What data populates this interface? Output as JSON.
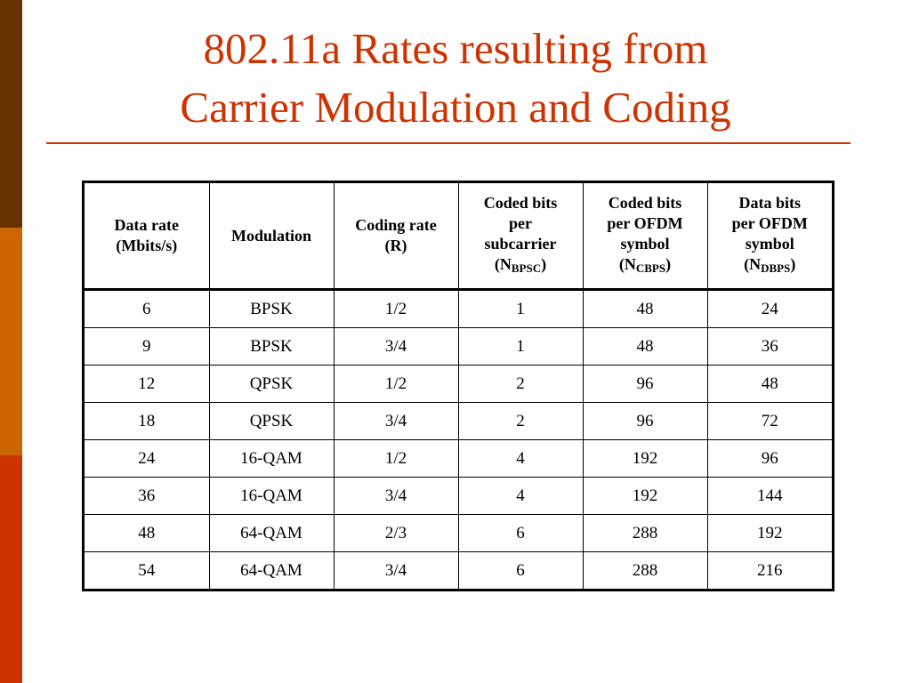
{
  "colors": {
    "band_top": "#663300",
    "band_middle": "#cc6600",
    "band_bottom": "#cc3300",
    "title": "#cc3300",
    "rule": "#cc3300"
  },
  "slide": {
    "title_line1": "802.11a Rates resulting from",
    "title_line2": "Carrier Modulation and Coding"
  },
  "table": {
    "headers": [
      {
        "lines": [
          "Data rate",
          "(Mbits/s)"
        ]
      },
      {
        "lines": [
          "Modulation"
        ]
      },
      {
        "lines": [
          "Coding rate",
          "(R)"
        ]
      },
      {
        "lines": [
          "Coded bits",
          "per",
          "subcarrier"
        ],
        "symbol": "N",
        "subscript": "BPSC"
      },
      {
        "lines": [
          "Coded bits",
          "per OFDM",
          "symbol"
        ],
        "symbol": "N",
        "subscript": "CBPS"
      },
      {
        "lines": [
          "Data bits",
          "per OFDM",
          "symbol"
        ],
        "symbol": "N",
        "subscript": "DBPS"
      }
    ],
    "rows": [
      [
        "6",
        "BPSK",
        "1/2",
        "1",
        "48",
        "24"
      ],
      [
        "9",
        "BPSK",
        "3/4",
        "1",
        "48",
        "36"
      ],
      [
        "12",
        "QPSK",
        "1/2",
        "2",
        "96",
        "48"
      ],
      [
        "18",
        "QPSK",
        "3/4",
        "2",
        "96",
        "72"
      ],
      [
        "24",
        "16-QAM",
        "1/2",
        "4",
        "192",
        "96"
      ],
      [
        "36",
        "16-QAM",
        "3/4",
        "4",
        "192",
        "144"
      ],
      [
        "48",
        "64-QAM",
        "2/3",
        "6",
        "288",
        "192"
      ],
      [
        "54",
        "64-QAM",
        "3/4",
        "6",
        "288",
        "216"
      ]
    ]
  }
}
